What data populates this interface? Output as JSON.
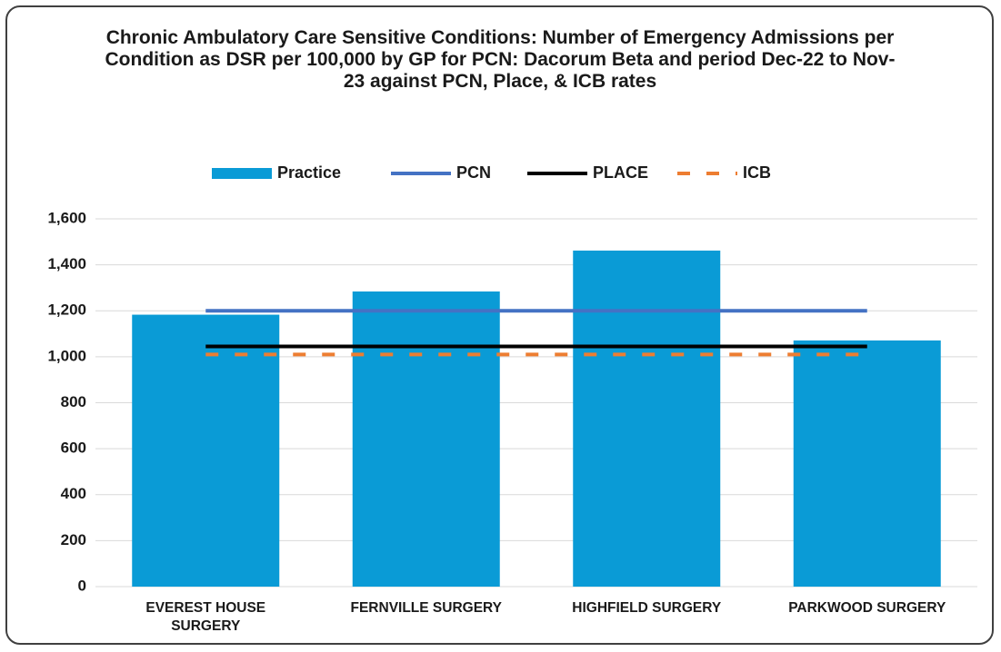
{
  "chart_data": {
    "type": "bar",
    "title": "Chronic Ambulatory Care Sensitive Conditions: Number of Emergency Admissions per Condition as DSR per 100,000 by GP for PCN: Dacorum Beta and period Dec-22 to Nov-23 against PCN, Place, & ICB rates",
    "categories": [
      "EVEREST HOUSE SURGERY",
      "FERNVILLE SURGERY",
      "HIGHFIELD SURGERY",
      "PARKWOOD SURGERY"
    ],
    "series": [
      {
        "name": "Practice",
        "type": "bar",
        "color": "#0a9bd6",
        "values": [
          1183,
          1284,
          1462,
          1071
        ]
      },
      {
        "name": "PCN",
        "type": "line",
        "color": "#4472c4",
        "values": [
          1200,
          1200,
          1200,
          1200
        ]
      },
      {
        "name": "PLACE",
        "type": "line",
        "color": "#000000",
        "values": [
          1045,
          1045,
          1045,
          1045
        ]
      },
      {
        "name": "ICB",
        "type": "line",
        "line_style": "dashed",
        "color": "#ed7d31",
        "values": [
          1010,
          1010,
          1010,
          1010
        ]
      }
    ],
    "ylim": [
      0,
      1600
    ],
    "yticks": [
      0,
      200,
      400,
      600,
      800,
      {
        "value": 1000,
        "label": "1,000"
      },
      {
        "value": 1200,
        "label": "1,200"
      },
      {
        "value": 1400,
        "label": "1,400"
      },
      {
        "value": 1600,
        "label": "1,600"
      }
    ],
    "grid": true,
    "legend": "top"
  }
}
